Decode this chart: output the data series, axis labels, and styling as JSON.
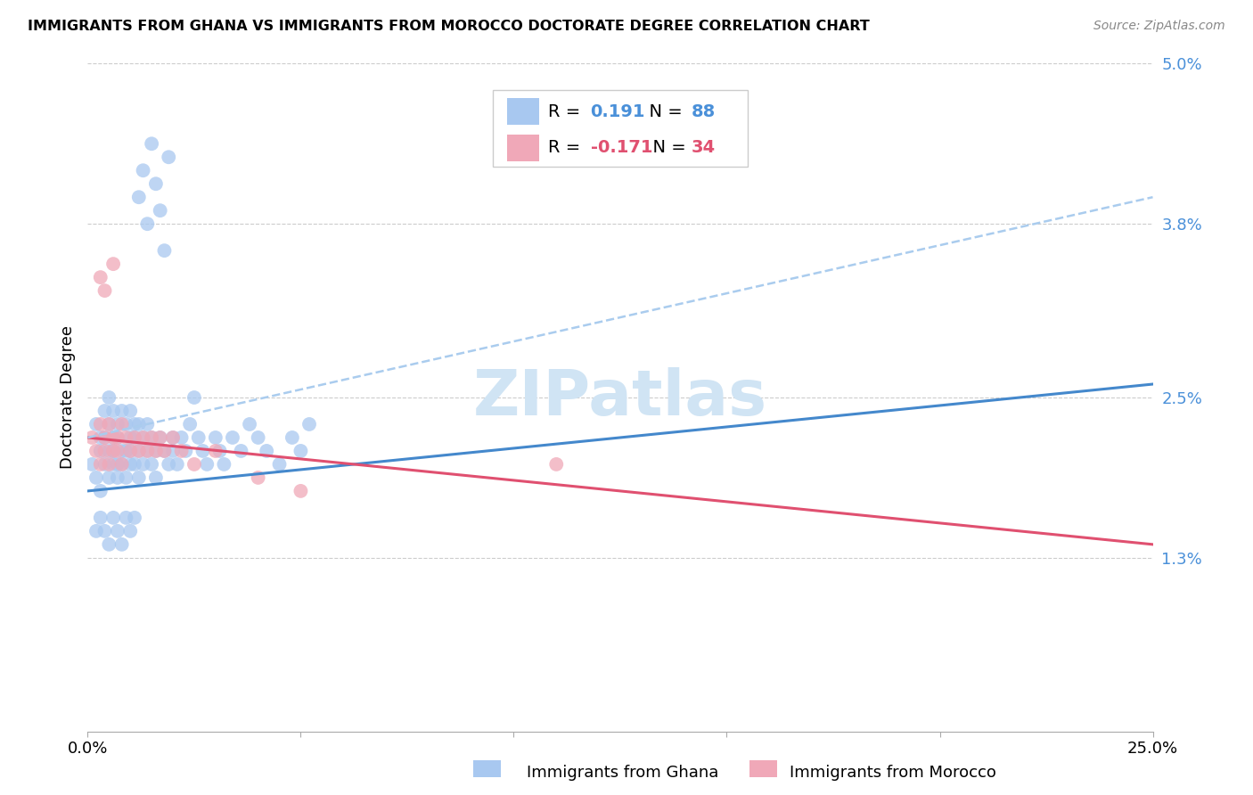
{
  "title": "IMMIGRANTS FROM GHANA VS IMMIGRANTS FROM MOROCCO DOCTORATE DEGREE CORRELATION CHART",
  "source": "Source: ZipAtlas.com",
  "ylabel_label": "Doctorate Degree",
  "xlim": [
    0.0,
    0.25
  ],
  "ylim": [
    0.0,
    0.05
  ],
  "ytick_values": [
    0.013,
    0.025,
    0.038,
    0.05
  ],
  "ytick_labels": [
    "1.3%",
    "2.5%",
    "3.8%",
    "5.0%"
  ],
  "xtick_values": [
    0.0,
    0.25
  ],
  "xtick_labels": [
    "0.0%",
    "25.0%"
  ],
  "ghana_R": "0.191",
  "ghana_N": "88",
  "morocco_R": "-0.171",
  "morocco_N": "34",
  "ghana_color": "#A8C8F0",
  "morocco_color": "#F0A8B8",
  "ghana_line_color": "#4488CC",
  "morocco_line_color": "#E05070",
  "dash_line_color": "#AACCEE",
  "watermark_color": "#D0E4F4",
  "ghana_x": [
    0.001,
    0.002,
    0.002,
    0.003,
    0.003,
    0.003,
    0.004,
    0.004,
    0.004,
    0.005,
    0.005,
    0.005,
    0.005,
    0.006,
    0.006,
    0.006,
    0.006,
    0.007,
    0.007,
    0.007,
    0.007,
    0.008,
    0.008,
    0.008,
    0.009,
    0.009,
    0.009,
    0.01,
    0.01,
    0.01,
    0.01,
    0.011,
    0.011,
    0.011,
    0.012,
    0.012,
    0.012,
    0.013,
    0.013,
    0.014,
    0.014,
    0.015,
    0.015,
    0.016,
    0.016,
    0.017,
    0.018,
    0.019,
    0.02,
    0.02,
    0.021,
    0.022,
    0.023,
    0.024,
    0.025,
    0.026,
    0.027,
    0.028,
    0.03,
    0.031,
    0.032,
    0.034,
    0.036,
    0.038,
    0.04,
    0.042,
    0.045,
    0.048,
    0.05,
    0.052,
    0.002,
    0.003,
    0.004,
    0.005,
    0.006,
    0.007,
    0.008,
    0.009,
    0.01,
    0.011,
    0.012,
    0.013,
    0.014,
    0.015,
    0.016,
    0.017,
    0.018,
    0.019
  ],
  "ghana_y": [
    0.02,
    0.023,
    0.019,
    0.022,
    0.021,
    0.018,
    0.024,
    0.02,
    0.022,
    0.023,
    0.021,
    0.019,
    0.025,
    0.022,
    0.02,
    0.024,
    0.021,
    0.023,
    0.02,
    0.022,
    0.019,
    0.024,
    0.021,
    0.02,
    0.023,
    0.021,
    0.019,
    0.022,
    0.02,
    0.024,
    0.021,
    0.023,
    0.02,
    0.022,
    0.021,
    0.019,
    0.023,
    0.022,
    0.02,
    0.021,
    0.023,
    0.02,
    0.022,
    0.021,
    0.019,
    0.022,
    0.021,
    0.02,
    0.022,
    0.021,
    0.02,
    0.022,
    0.021,
    0.023,
    0.025,
    0.022,
    0.021,
    0.02,
    0.022,
    0.021,
    0.02,
    0.022,
    0.021,
    0.023,
    0.022,
    0.021,
    0.02,
    0.022,
    0.021,
    0.023,
    0.015,
    0.016,
    0.015,
    0.014,
    0.016,
    0.015,
    0.014,
    0.016,
    0.015,
    0.016,
    0.04,
    0.042,
    0.038,
    0.044,
    0.041,
    0.039,
    0.036,
    0.043
  ],
  "morocco_x": [
    0.001,
    0.002,
    0.003,
    0.003,
    0.004,
    0.004,
    0.005,
    0.005,
    0.006,
    0.006,
    0.007,
    0.007,
    0.008,
    0.008,
    0.009,
    0.01,
    0.011,
    0.012,
    0.013,
    0.014,
    0.015,
    0.016,
    0.017,
    0.018,
    0.02,
    0.022,
    0.025,
    0.03,
    0.04,
    0.05,
    0.003,
    0.004,
    0.11,
    0.006
  ],
  "morocco_y": [
    0.022,
    0.021,
    0.023,
    0.02,
    0.022,
    0.021,
    0.023,
    0.02,
    0.022,
    0.021,
    0.022,
    0.021,
    0.023,
    0.02,
    0.022,
    0.021,
    0.022,
    0.021,
    0.022,
    0.021,
    0.022,
    0.021,
    0.022,
    0.021,
    0.022,
    0.021,
    0.02,
    0.021,
    0.019,
    0.018,
    0.034,
    0.033,
    0.02,
    0.035
  ],
  "ghana_trend_x0": 0.0,
  "ghana_trend_x1": 0.25,
  "ghana_trend_y0": 0.018,
  "ghana_trend_y1": 0.026,
  "morocco_trend_x0": 0.0,
  "morocco_trend_x1": 0.25,
  "morocco_trend_y0": 0.022,
  "morocco_trend_y1": 0.014,
  "dash_trend_x0": 0.0,
  "dash_trend_x1": 0.25,
  "dash_trend_y0": 0.022,
  "dash_trend_y1": 0.04
}
